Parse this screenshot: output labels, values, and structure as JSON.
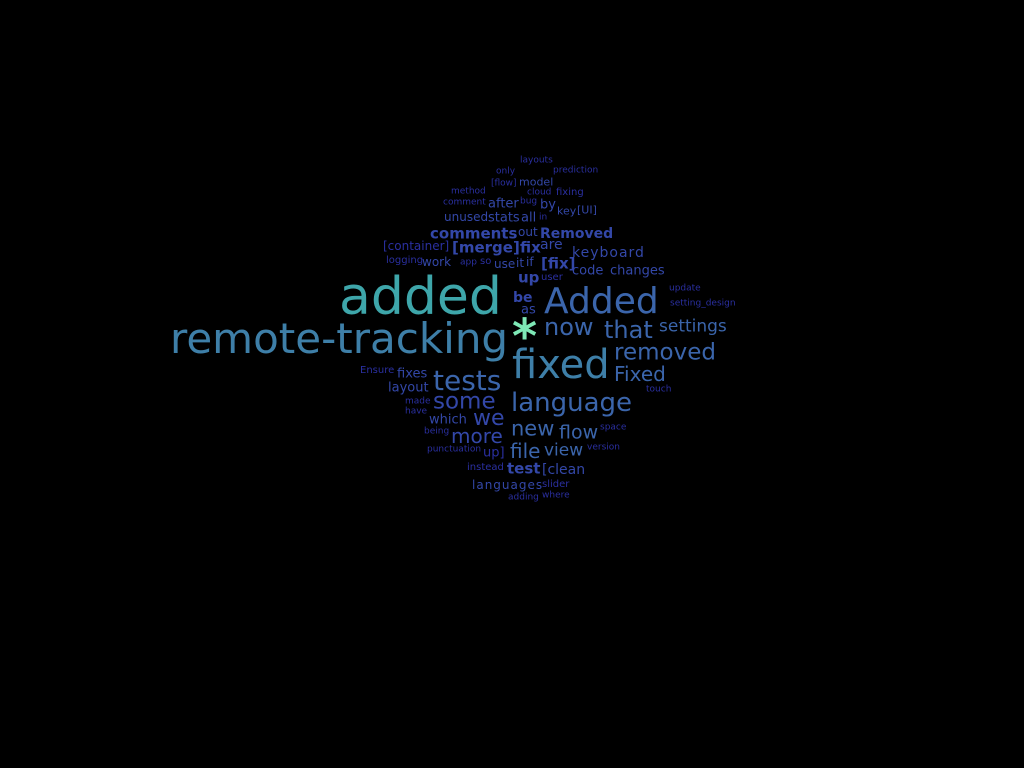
{
  "background": "#000000",
  "palette": {
    "teal_bright": "#7ee8b6",
    "teal": "#3ea6aa",
    "steel_blue": "#3e7fa8",
    "blue": "#3b65ab",
    "indigo": "#3347a8",
    "deep_indigo": "#2a2fa0"
  },
  "words": [
    {
      "text": "remote-tracking",
      "color": "steel_blue"
    },
    {
      "text": "added",
      "color": "teal"
    },
    {
      "text": "Added",
      "color": "blue"
    },
    {
      "text": "*",
      "color": "teal_bright"
    },
    {
      "text": "fixed",
      "color": "steel_blue"
    },
    {
      "text": "now",
      "color": "blue"
    },
    {
      "text": "that",
      "color": "blue"
    },
    {
      "text": "settings",
      "color": "blue"
    },
    {
      "text": "removed",
      "color": "blue"
    },
    {
      "text": "Fixed",
      "color": "blue"
    },
    {
      "text": "tests",
      "color": "blue"
    },
    {
      "text": "some",
      "color": "indigo"
    },
    {
      "text": "language",
      "color": "blue"
    },
    {
      "text": "we",
      "color": "indigo"
    },
    {
      "text": "more",
      "color": "indigo"
    },
    {
      "text": "new",
      "color": "blue"
    },
    {
      "text": "flow",
      "color": "blue"
    },
    {
      "text": "file",
      "color": "blue"
    },
    {
      "text": "view",
      "color": "blue"
    },
    {
      "text": "test",
      "color": "indigo"
    },
    {
      "text": "[clean",
      "color": "indigo"
    },
    {
      "text": "languages",
      "color": "indigo"
    },
    {
      "text": "slider",
      "color": "deep_indigo"
    },
    {
      "text": "adding",
      "color": "deep_indigo"
    },
    {
      "text": "where",
      "color": "deep_indigo"
    },
    {
      "text": "instead",
      "color": "deep_indigo"
    },
    {
      "text": "up]",
      "color": "deep_indigo"
    },
    {
      "text": "punctuation",
      "color": "deep_indigo"
    },
    {
      "text": "version",
      "color": "deep_indigo"
    },
    {
      "text": "space",
      "color": "deep_indigo"
    },
    {
      "text": "being",
      "color": "deep_indigo"
    },
    {
      "text": "which",
      "color": "indigo"
    },
    {
      "text": "have",
      "color": "deep_indigo"
    },
    {
      "text": "made",
      "color": "deep_indigo"
    },
    {
      "text": "layout",
      "color": "indigo"
    },
    {
      "text": "fixes",
      "color": "indigo"
    },
    {
      "text": "Ensure",
      "color": "deep_indigo"
    },
    {
      "text": "touch",
      "color": "deep_indigo"
    },
    {
      "text": "comments",
      "color": "indigo"
    },
    {
      "text": "Removed",
      "color": "indigo"
    },
    {
      "text": "[merge]",
      "color": "indigo"
    },
    {
      "text": "fix",
      "color": "indigo"
    },
    {
      "text": "are",
      "color": "indigo"
    },
    {
      "text": "keyboard",
      "color": "indigo"
    },
    {
      "text": "[container]",
      "color": "deep_indigo"
    },
    {
      "text": "logging",
      "color": "deep_indigo"
    },
    {
      "text": "work",
      "color": "indigo"
    },
    {
      "text": "app",
      "color": "deep_indigo"
    },
    {
      "text": "so",
      "color": "deep_indigo"
    },
    {
      "text": "use",
      "color": "indigo"
    },
    {
      "text": "it",
      "color": "indigo"
    },
    {
      "text": "if",
      "color": "indigo"
    },
    {
      "text": "[fix]",
      "color": "indigo"
    },
    {
      "text": "code",
      "color": "indigo"
    },
    {
      "text": "changes",
      "color": "indigo"
    },
    {
      "text": "up",
      "color": "indigo"
    },
    {
      "text": "user",
      "color": "deep_indigo"
    },
    {
      "text": "be",
      "color": "indigo"
    },
    {
      "text": "as",
      "color": "indigo"
    },
    {
      "text": "update",
      "color": "deep_indigo"
    },
    {
      "text": "setting_design",
      "color": "deep_indigo"
    },
    {
      "text": "unused",
      "color": "indigo"
    },
    {
      "text": "stats",
      "color": "indigo"
    },
    {
      "text": "all",
      "color": "indigo"
    },
    {
      "text": "in",
      "color": "deep_indigo"
    },
    {
      "text": "out",
      "color": "indigo"
    },
    {
      "text": "after",
      "color": "indigo"
    },
    {
      "text": "bug",
      "color": "deep_indigo"
    },
    {
      "text": "by",
      "color": "indigo"
    },
    {
      "text": "key",
      "color": "indigo"
    },
    {
      "text": "[UI]",
      "color": "indigo"
    },
    {
      "text": "method",
      "color": "deep_indigo"
    },
    {
      "text": "comment",
      "color": "deep_indigo"
    },
    {
      "text": "[flow]",
      "color": "deep_indigo"
    },
    {
      "text": "model",
      "color": "indigo"
    },
    {
      "text": "cloud",
      "color": "deep_indigo"
    },
    {
      "text": "fixing",
      "color": "deep_indigo"
    },
    {
      "text": "only",
      "color": "deep_indigo"
    },
    {
      "text": "prediction",
      "color": "deep_indigo"
    },
    {
      "text": "layouts",
      "color": "deep_indigo"
    }
  ]
}
